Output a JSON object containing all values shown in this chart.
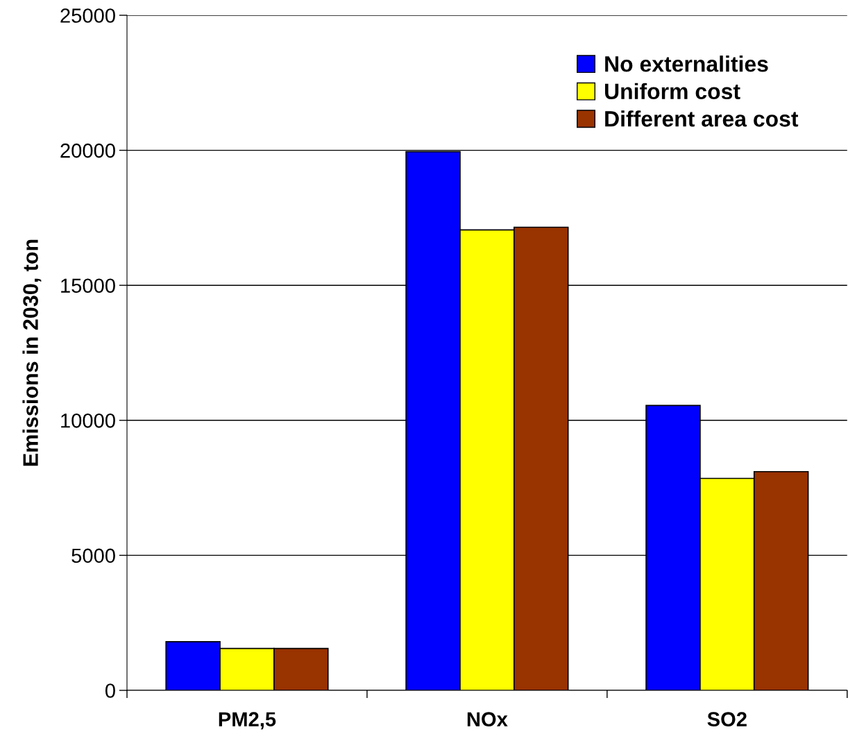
{
  "chart_data": {
    "type": "bar",
    "ylabel": "Emissions in 2030, ton",
    "categories": [
      "PM2,5",
      "NOx",
      "SO2"
    ],
    "series": [
      {
        "name": "No externalities",
        "color": "#0000ff",
        "values": [
          1800,
          19950,
          10550
        ]
      },
      {
        "name": "Uniform cost",
        "color": "#ffff00",
        "values": [
          1550,
          17050,
          7850
        ]
      },
      {
        "name": "Different area cost",
        "color": "#993300",
        "values": [
          1550,
          17150,
          8100
        ]
      }
    ],
    "ylim": [
      0,
      25000
    ],
    "yticks": [
      0,
      5000,
      10000,
      15000,
      20000,
      25000
    ],
    "grid": "y",
    "legend": "top right"
  }
}
